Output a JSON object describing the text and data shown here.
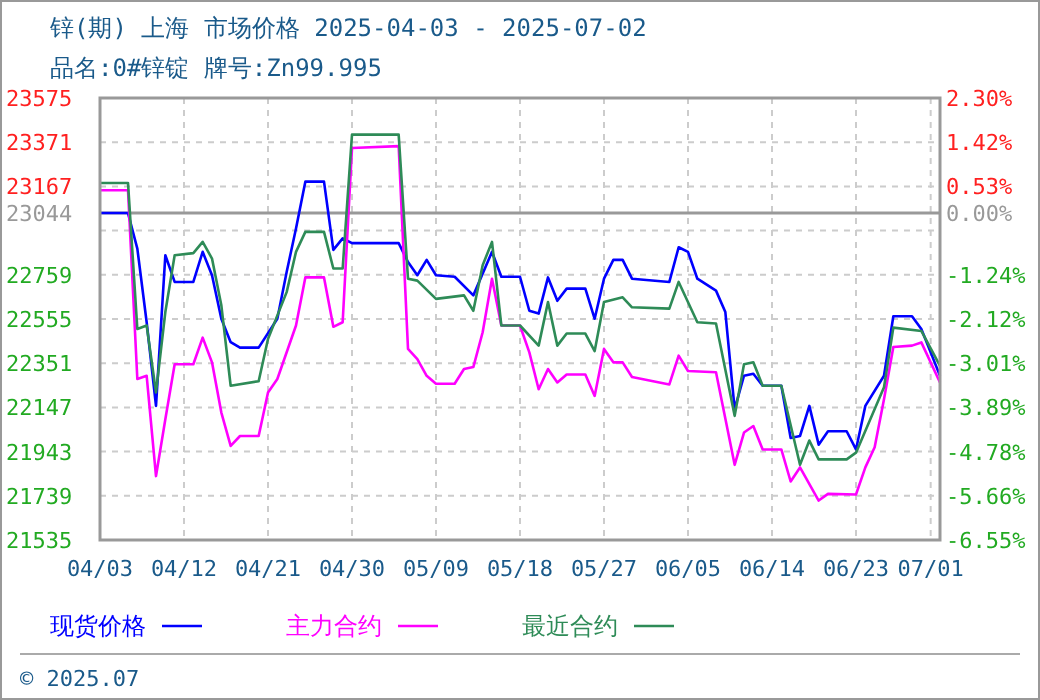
{
  "chart_data": {
    "type": "line",
    "title": "锌(期) 上海 市场价格 2025-04-03 - 2025-07-02",
    "subtitle": "品名:0#锌锭 牌号:Zn99.995",
    "annotations": [
      "© 2025.07"
    ],
    "xlim": [
      "2025-04-03",
      "2025-07-02"
    ],
    "xticks": [
      {
        "value": "2025-04-03",
        "label": "04/03"
      },
      {
        "value": "2025-04-12",
        "label": "04/12"
      },
      {
        "value": "2025-04-21",
        "label": "04/21"
      },
      {
        "value": "2025-04-30",
        "label": "04/30"
      },
      {
        "value": "2025-05-09",
        "label": "05/09"
      },
      {
        "value": "2025-05-18",
        "label": "05/18"
      },
      {
        "value": "2025-05-27",
        "label": "05/27"
      },
      {
        "value": "2025-06-05",
        "label": "06/05"
      },
      {
        "value": "2025-06-14",
        "label": "06/14"
      },
      {
        "value": "2025-06-23",
        "label": "06/23"
      },
      {
        "value": "2025-07-01",
        "label": "07/01"
      }
    ],
    "ylim": [
      21535,
      23575
    ],
    "yticks": [
      21535,
      21739,
      21943,
      22147,
      22351,
      22555,
      22759,
      {
        "value": 22963,
        "label": null
      },
      23044,
      23167,
      23371,
      23575
    ],
    "y2lim": [
      -6.55,
      2.3
    ],
    "y2ticks": [
      {
        "value": -6.55,
        "label": "-6.55%"
      },
      {
        "value": -5.66,
        "label": "-5.66%"
      },
      {
        "value": -4.78,
        "label": "-4.78%"
      },
      {
        "value": -3.89,
        "label": "-3.89%"
      },
      {
        "value": -3.01,
        "label": "-3.01%"
      },
      {
        "value": -2.12,
        "label": "-2.12%"
      },
      {
        "value": -1.24,
        "label": "-1.24%"
      },
      {
        "value": 0,
        "label": "0.00%"
      },
      {
        "value": 0.53,
        "label": "0.53%"
      },
      {
        "value": 1.42,
        "label": "1.42%"
      },
      {
        "value": 2.3,
        "label": "2.30%"
      }
    ],
    "ref_lines": [
      {
        "axis": "y",
        "value": 23044,
        "color": "#999999"
      }
    ],
    "grid": true,
    "legend": "bottom",
    "line_style": "solid",
    "series": [
      {
        "name": "现货价格",
        "color": "#0000ff",
        "x": [
          "2025-04-03",
          "2025-04-06",
          "2025-04-07",
          "2025-04-08",
          "2025-04-09",
          "2025-04-10",
          "2025-04-11",
          "2025-04-13",
          "2025-04-14",
          "2025-04-15",
          "2025-04-16",
          "2025-04-17",
          "2025-04-18",
          "2025-04-20",
          "2025-04-22",
          "2025-04-23",
          "2025-04-24",
          "2025-04-25",
          "2025-04-27",
          "2025-04-28",
          "2025-04-29",
          "2025-04-30",
          "2025-05-05",
          "2025-05-06",
          "2025-05-07",
          "2025-05-08",
          "2025-05-09",
          "2025-05-11",
          "2025-05-13",
          "2025-05-15",
          "2025-05-16",
          "2025-05-18",
          "2025-05-19",
          "2025-05-20",
          "2025-05-21",
          "2025-05-22",
          "2025-05-23",
          "2025-05-25",
          "2025-05-26",
          "2025-05-27",
          "2025-05-28",
          "2025-05-29",
          "2025-05-30",
          "2025-06-03",
          "2025-06-04",
          "2025-06-05",
          "2025-06-06",
          "2025-06-08",
          "2025-06-09",
          "2025-06-10",
          "2025-06-11",
          "2025-06-12",
          "2025-06-13",
          "2025-06-15",
          "2025-06-16",
          "2025-06-17",
          "2025-06-18",
          "2025-06-19",
          "2025-06-20",
          "2025-06-22",
          "2025-06-23",
          "2025-06-24",
          "2025-06-26",
          "2025-06-27",
          "2025-06-29",
          "2025-06-30",
          "2025-07-01",
          "2025-07-02"
        ],
        "values": [
          23044,
          23044,
          22880,
          22540,
          22154,
          22849,
          22726,
          22726,
          22865,
          22757,
          22556,
          22448,
          22423,
          22423,
          22556,
          22772,
          22973,
          23189,
          23189,
          22874,
          22927,
          22905,
          22905,
          22818,
          22757,
          22828,
          22757,
          22750,
          22664,
          22865,
          22750,
          22750,
          22593,
          22580,
          22747,
          22639,
          22695,
          22695,
          22556,
          22741,
          22828,
          22828,
          22741,
          22726,
          22886,
          22865,
          22741,
          22686,
          22587,
          22139,
          22293,
          22302,
          22247,
          22247,
          22006,
          22015,
          22154,
          21975,
          22037,
          22037,
          21953,
          22154,
          22293,
          22568,
          22568,
          22509,
          22401,
          22293
        ]
      },
      {
        "name": "主力合约",
        "color": "#ff00ff",
        "x": [
          "2025-04-03",
          "2025-04-06",
          "2025-04-07",
          "2025-04-08",
          "2025-04-09",
          "2025-04-10",
          "2025-04-11",
          "2025-04-13",
          "2025-04-14",
          "2025-04-15",
          "2025-04-16",
          "2025-04-17",
          "2025-04-18",
          "2025-04-20",
          "2025-04-21",
          "2025-04-22",
          "2025-04-24",
          "2025-04-25",
          "2025-04-27",
          "2025-04-28",
          "2025-04-29",
          "2025-04-30",
          "2025-05-05",
          "2025-05-06",
          "2025-05-07",
          "2025-05-08",
          "2025-05-09",
          "2025-05-11",
          "2025-05-12",
          "2025-05-13",
          "2025-05-14",
          "2025-05-15",
          "2025-05-16",
          "2025-05-18",
          "2025-05-19",
          "2025-05-20",
          "2025-05-21",
          "2025-05-22",
          "2025-05-23",
          "2025-05-25",
          "2025-05-26",
          "2025-05-27",
          "2025-05-28",
          "2025-05-29",
          "2025-05-30",
          "2025-06-03",
          "2025-06-04",
          "2025-06-05",
          "2025-06-08",
          "2025-06-10",
          "2025-06-11",
          "2025-06-12",
          "2025-06-13",
          "2025-06-15",
          "2025-06-16",
          "2025-06-17",
          "2025-06-19",
          "2025-06-20",
          "2025-06-23",
          "2025-06-24",
          "2025-06-25",
          "2025-06-26",
          "2025-06-27",
          "2025-06-29",
          "2025-06-30",
          "2025-07-02"
        ],
        "values": [
          23149,
          23149,
          22278,
          22293,
          21830,
          22092,
          22346,
          22346,
          22469,
          22355,
          22123,
          21969,
          22015,
          22015,
          22216,
          22278,
          22525,
          22747,
          22747,
          22519,
          22540,
          23344,
          23353,
          22417,
          22370,
          22293,
          22256,
          22256,
          22324,
          22333,
          22494,
          22741,
          22525,
          22525,
          22401,
          22231,
          22324,
          22262,
          22299,
          22299,
          22200,
          22417,
          22355,
          22355,
          22287,
          22253,
          22386,
          22315,
          22309,
          21882,
          22031,
          22061,
          21953,
          21953,
          21805,
          21870,
          21717,
          21748,
          21745,
          21870,
          21963,
          22185,
          22426,
          22432,
          22447,
          22262
        ]
      },
      {
        "name": "最近合约",
        "color": "#2e8b57",
        "x": [
          "2025-04-03",
          "2025-04-06",
          "2025-04-07",
          "2025-04-08",
          "2025-04-09",
          "2025-04-10",
          "2025-04-11",
          "2025-04-13",
          "2025-04-14",
          "2025-04-15",
          "2025-04-16",
          "2025-04-17",
          "2025-04-20",
          "2025-04-21",
          "2025-04-23",
          "2025-04-24",
          "2025-04-25",
          "2025-04-27",
          "2025-04-28",
          "2025-04-29",
          "2025-04-30",
          "2025-05-05",
          "2025-05-06",
          "2025-05-07",
          "2025-05-09",
          "2025-05-12",
          "2025-05-13",
          "2025-05-14",
          "2025-05-15",
          "2025-05-16",
          "2025-05-18",
          "2025-05-20",
          "2025-05-21",
          "2025-05-22",
          "2025-05-23",
          "2025-05-25",
          "2025-05-26",
          "2025-05-27",
          "2025-05-29",
          "2025-05-30",
          "2025-06-03",
          "2025-06-04",
          "2025-06-06",
          "2025-06-08",
          "2025-06-10",
          "2025-06-11",
          "2025-06-12",
          "2025-06-13",
          "2025-06-15",
          "2025-06-17",
          "2025-06-18",
          "2025-06-19",
          "2025-06-22",
          "2025-06-23",
          "2025-06-26",
          "2025-06-27",
          "2025-06-30",
          "2025-07-02"
        ],
        "values": [
          23183,
          23183,
          22509,
          22525,
          22216,
          22587,
          22849,
          22859,
          22911,
          22834,
          22618,
          22247,
          22268,
          22463,
          22679,
          22865,
          22957,
          22957,
          22788,
          22788,
          23406,
          23406,
          22741,
          22732,
          22648,
          22664,
          22593,
          22803,
          22911,
          22525,
          22525,
          22432,
          22633,
          22432,
          22488,
          22488,
          22407,
          22633,
          22655,
          22609,
          22603,
          22726,
          22540,
          22534,
          22108,
          22346,
          22355,
          22247,
          22247,
          21882,
          21994,
          21907,
          21907,
          21938,
          22240,
          22515,
          22500,
          22339
        ]
      }
    ]
  }
}
